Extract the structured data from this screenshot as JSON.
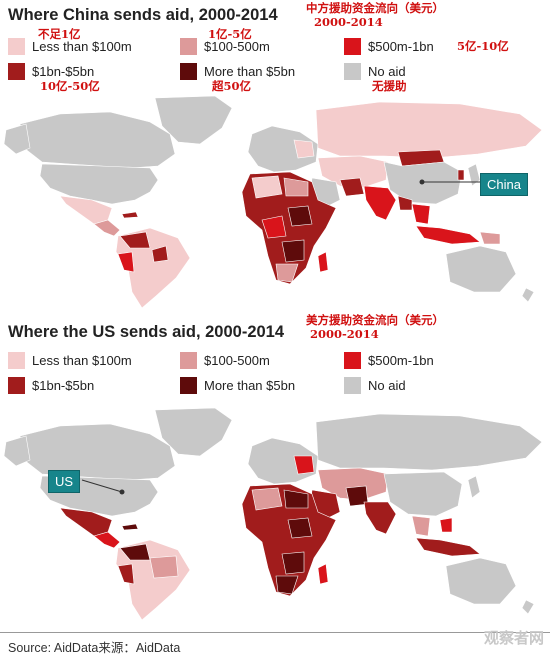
{
  "colors": {
    "less_100m": "#f4cccc",
    "m100_500": "#dd9a9a",
    "m500_1bn": "#d9141b",
    "bn1_5": "#a11c1c",
    "more_5bn": "#5e0b0b",
    "no_aid": "#c8c8c8",
    "callout": "#17858b",
    "note_red": "#d01010"
  },
  "china": {
    "title": "Where China sends aid, 2000-2014",
    "cn_title_line1": "中方援助资金流向（美元）",
    "cn_title_line2": "2000-2014",
    "legend": [
      {
        "label": "Less than $100m",
        "cn": "不足1亿",
        "color_key": "less_100m"
      },
      {
        "label": "$100-500m",
        "cn": "1亿-5亿",
        "color_key": "m100_500"
      },
      {
        "label": "$500m-1bn",
        "cn": "5亿-10亿",
        "color_key": "m500_1bn"
      },
      {
        "label": "$1bn-$5bn",
        "cn": "10亿-50亿",
        "color_key": "bn1_5"
      },
      {
        "label": "More than $5bn",
        "cn": "超50亿",
        "color_key": "more_5bn"
      },
      {
        "label": "No aid",
        "cn": "无援助",
        "color_key": "no_aid"
      }
    ],
    "callout": "China"
  },
  "us": {
    "title": "Where the US sends aid, 2000-2014",
    "cn_title_line1": "美方援助资金流向（美元）",
    "cn_title_line2": "2000-2014",
    "legend": [
      {
        "label": "Less than $100m",
        "color_key": "less_100m"
      },
      {
        "label": "$100-500m",
        "color_key": "m100_500"
      },
      {
        "label": "$500m-1bn",
        "color_key": "m500_1bn"
      },
      {
        "label": "$1bn-$5bn",
        "color_key": "bn1_5"
      },
      {
        "label": "More than $5bn",
        "color_key": "more_5bn"
      },
      {
        "label": "No aid",
        "color_key": "no_aid"
      }
    ],
    "callout": "US"
  },
  "footer": {
    "source": "Source: AidData来源：AidData",
    "watermark": "观察者网"
  }
}
